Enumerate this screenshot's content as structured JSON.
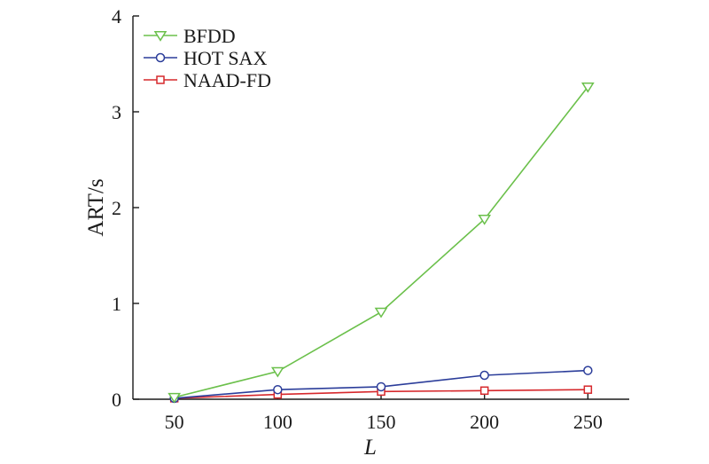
{
  "chart_data": {
    "type": "line",
    "title": "",
    "xlabel": "L",
    "ylabel": "ART/s",
    "x": [
      50,
      100,
      150,
      200,
      250
    ],
    "xticks": [
      50,
      100,
      150,
      200,
      250
    ],
    "yticks": [
      0,
      1,
      2,
      3,
      4
    ],
    "xlim": [
      30,
      270
    ],
    "ylim": [
      0,
      4
    ],
    "grid": false,
    "legend_position": "top-left",
    "series": [
      {
        "name": "BFDD",
        "color": "#6bc04b",
        "marker": "triangle-down",
        "values": [
          0.02,
          0.29,
          0.91,
          1.88,
          3.26
        ]
      },
      {
        "name": "HOT SAX",
        "color": "#2b3d9a",
        "marker": "circle",
        "values": [
          0.01,
          0.1,
          0.13,
          0.25,
          0.3
        ]
      },
      {
        "name": "NAAD-FD",
        "color": "#d6282c",
        "marker": "square",
        "values": [
          0.01,
          0.05,
          0.08,
          0.09,
          0.1
        ]
      }
    ]
  }
}
